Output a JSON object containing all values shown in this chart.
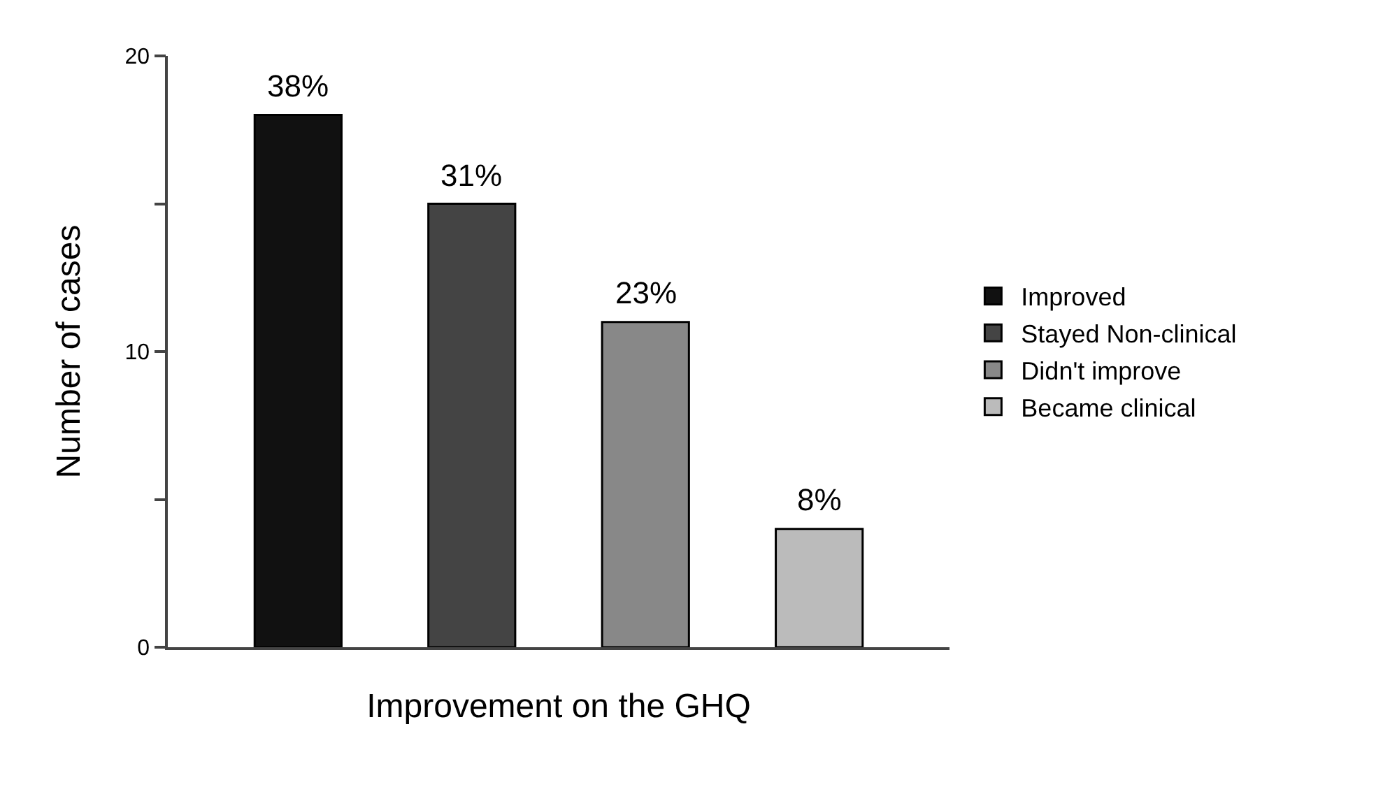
{
  "chart_data": {
    "type": "bar",
    "xlabel": "Improvement on the GHQ",
    "ylabel": "Number of cases",
    "categories": [
      null,
      null,
      null,
      null
    ],
    "series": [
      {
        "name": "Improved",
        "color": "#111111",
        "values": [
          18,
          null,
          null,
          null
        ]
      },
      {
        "name": "Stayed Non-clinical",
        "color": "#444444",
        "values": [
          null,
          15,
          null,
          null
        ]
      },
      {
        "name": "Didn't improve",
        "color": "#888888",
        "values": [
          null,
          null,
          11,
          null
        ]
      },
      {
        "name": "Became clinical",
        "color": "#bbbbbb",
        "values": [
          null,
          null,
          null,
          4
        ]
      }
    ],
    "annotations": [
      {
        "text": "38%",
        "y": 18
      },
      {
        "text": "31%",
        "y": 15
      },
      {
        "text": "23%",
        "y": 11
      },
      {
        "text": "8%",
        "y": 4
      }
    ],
    "ylim": [
      0,
      20
    ],
    "yticks": [
      0,
      {
        "value": 5,
        "label": null
      },
      10,
      {
        "value": 15,
        "label": null
      },
      20
    ],
    "grid": false,
    "legend": "right"
  }
}
